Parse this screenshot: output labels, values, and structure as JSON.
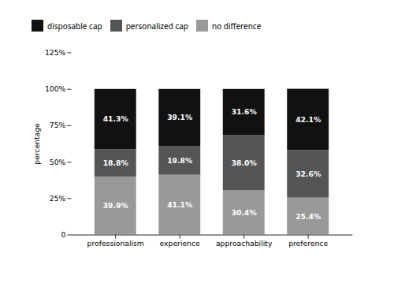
{
  "chart_data": {
    "type": "bar",
    "stacked": true,
    "ylabel": "percentage",
    "categories": [
      "professionalism",
      "experience",
      "approachability",
      "preference"
    ],
    "series": [
      {
        "name": "no difference",
        "color": "#999999",
        "values": [
          39.9,
          41.1,
          30.4,
          25.4
        ],
        "value_labels": [
          "39.9%",
          "41.1%",
          "30.4%",
          "25.4%"
        ]
      },
      {
        "name": "personalized cap",
        "color": "#555555",
        "values": [
          18.8,
          19.8,
          38.0,
          32.6
        ],
        "value_labels": [
          "18.8%",
          "19.8%",
          "38.0%",
          "32.6%"
        ]
      },
      {
        "name": "disposable cap",
        "color": "#111111",
        "values": [
          41.3,
          39.1,
          31.6,
          42.1
        ],
        "value_labels": [
          "41.3%",
          "39.1%",
          "31.6%",
          "42.1%"
        ]
      }
    ],
    "ylim": [
      0,
      125
    ],
    "yticks": [
      0,
      {
        "value": 25,
        "label": "25%"
      },
      {
        "value": 50,
        "label": "50%"
      },
      {
        "value": 75,
        "label": "75%"
      },
      {
        "value": 100,
        "label": "100%"
      },
      {
        "value": 125,
        "label": "125%"
      }
    ],
    "grid": false,
    "data_labels": true,
    "legend": "top"
  }
}
